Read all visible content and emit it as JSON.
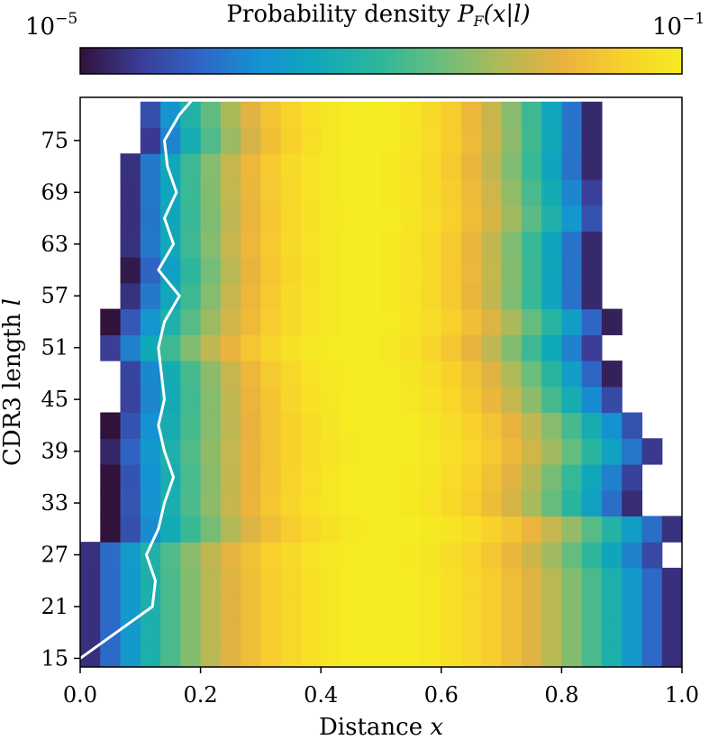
{
  "chart_data": {
    "type": "heatmap",
    "colorbar": {
      "label_text": "Probability density ",
      "label_math": "P",
      "label_sub": "F",
      "label_tail": "(x|l)",
      "min_base": "10",
      "min_exp": "−5",
      "max_base": "10",
      "max_exp": "−1",
      "log_min": -5,
      "log_max": -1,
      "colormap": [
        "#30123b",
        "#3b3c96",
        "#2f66c6",
        "#1493d2",
        "#10a9b8",
        "#2fb79a",
        "#6cbd7c",
        "#b1b957",
        "#e9b23e",
        "#f8cf2c",
        "#f6ec22"
      ]
    },
    "xlabel_text": "Distance ",
    "xlabel_math": "x",
    "ylabel_text": "CDR3 length ",
    "ylabel_math": "l",
    "xlim": [
      0.0,
      1.0
    ],
    "ylim": [
      14,
      80
    ],
    "xticks": [
      "0.0",
      "0.2",
      "0.4",
      "0.6",
      "0.8",
      "1.0"
    ],
    "yticks": [
      "15",
      "21",
      "27",
      "33",
      "39",
      "45",
      "51",
      "57",
      "63",
      "69",
      "75"
    ],
    "rows": [
      {
        "l": 15,
        "lo": 0.0,
        "hi": 1.0
      },
      {
        "l": 18,
        "lo": 0.0,
        "hi": 1.0
      },
      {
        "l": 21,
        "lo": 0.0,
        "hi": 1.0
      },
      {
        "l": 24,
        "lo": 0.0,
        "hi": 1.0
      },
      {
        "l": 27,
        "lo": 0.0,
        "hi": 0.98
      },
      {
        "l": 30,
        "lo": 0.05,
        "hi": 1.0
      },
      {
        "l": 33,
        "lo": 0.05,
        "hi": 0.93
      },
      {
        "l": 36,
        "lo": 0.05,
        "hi": 0.94
      },
      {
        "l": 39,
        "lo": 0.04,
        "hi": 0.97
      },
      {
        "l": 42,
        "lo": 0.05,
        "hi": 0.95
      },
      {
        "l": 45,
        "lo": 0.06,
        "hi": 0.91
      },
      {
        "l": 48,
        "lo": 0.06,
        "hi": 0.89
      },
      {
        "l": 51,
        "lo": 0.03,
        "hi": 0.87
      },
      {
        "l": 54,
        "lo": 0.05,
        "hi": 0.89
      },
      {
        "l": 57,
        "lo": 0.07,
        "hi": 0.86
      },
      {
        "l": 60,
        "lo": 0.08,
        "hi": 0.86
      },
      {
        "l": 63,
        "lo": 0.07,
        "hi": 0.86
      },
      {
        "l": 66,
        "lo": 0.07,
        "hi": 0.88
      },
      {
        "l": 69,
        "lo": 0.07,
        "hi": 0.87
      },
      {
        "l": 72,
        "lo": 0.07,
        "hi": 0.86
      },
      {
        "l": 75,
        "lo": 0.1,
        "hi": 0.86
      },
      {
        "l": 78,
        "lo": 0.09,
        "hi": 0.86
      }
    ],
    "white_line": {
      "x": [
        0.0,
        0.06,
        0.12,
        0.125,
        0.11,
        0.13,
        0.14,
        0.155,
        0.14,
        0.13,
        0.14,
        0.135,
        0.13,
        0.14,
        0.165,
        0.13,
        0.155,
        0.14,
        0.16,
        0.145,
        0.14,
        0.165,
        0.19
      ],
      "l": [
        15.0,
        18.0,
        21.0,
        24.0,
        27.0,
        30.0,
        33.0,
        36.0,
        39.0,
        42.0,
        45.0,
        48.0,
        51.0,
        54.0,
        57.0,
        60.0,
        63.0,
        66.0,
        69.0,
        72.0,
        75.0,
        78.0,
        80.0
      ],
      "color": "#ffffff"
    }
  }
}
